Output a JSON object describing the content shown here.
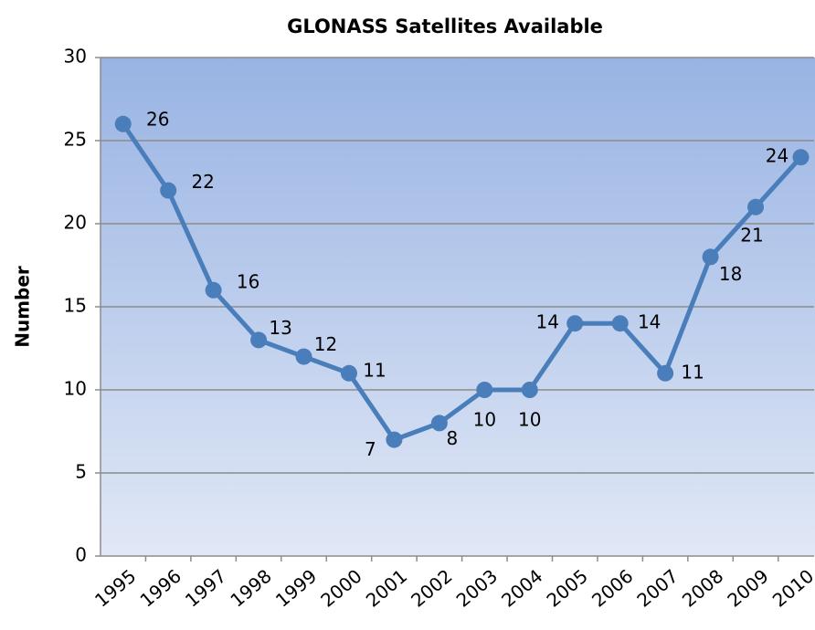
{
  "chart_data": {
    "type": "line",
    "title": "GLONASS Satellites Available",
    "y_label": "Number",
    "categories": [
      "1995",
      "1996",
      "1997",
      "1998",
      "1999",
      "2000",
      "2001",
      "2002",
      "2003",
      "2004",
      "2005",
      "2006",
      "2007",
      "2008",
      "2009",
      "2010"
    ],
    "series": [
      {
        "name": "Satellites",
        "color": "#4a7ebb",
        "values": [
          26,
          22,
          16,
          13,
          12,
          11,
          7,
          8,
          10,
          10,
          14,
          14,
          11,
          18,
          21,
          24
        ]
      }
    ],
    "ylim": [
      0,
      30
    ],
    "yticks": [
      0,
      5,
      10,
      15,
      20,
      25,
      30
    ],
    "grid": true
  }
}
